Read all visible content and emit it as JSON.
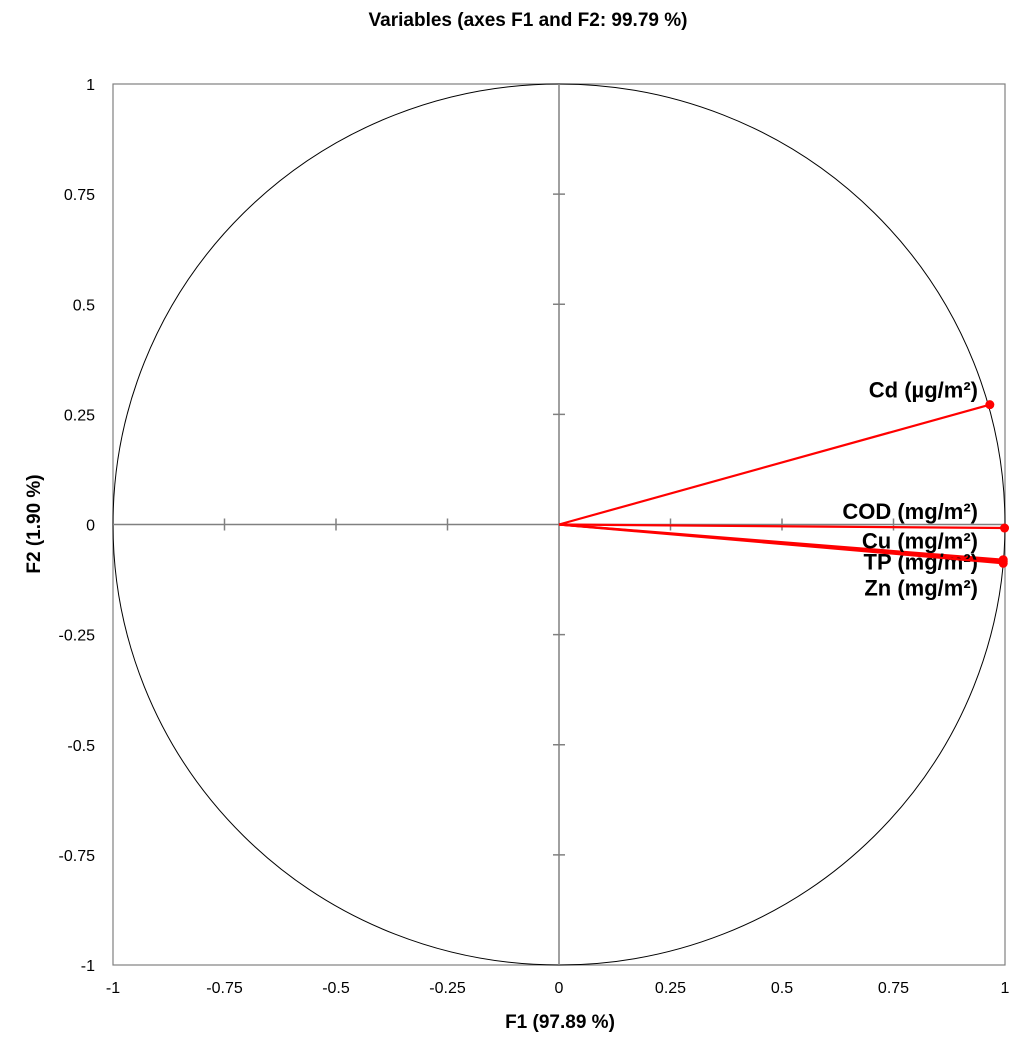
{
  "chart_data": {
    "type": "scatter",
    "subtype": "correlation-circle",
    "title": "Variables (axes F1 and F2: 99.79 %)",
    "xlabel": "F1 (97.89 %)",
    "ylabel": "F2 (1.90 %)",
    "xlim": [
      -1,
      1
    ],
    "ylim": [
      -1,
      1
    ],
    "x_ticks": [
      "-1",
      "-0.75",
      "-0.5",
      "-0.25",
      "0",
      "0.25",
      "0.5",
      "0.75",
      "1"
    ],
    "y_ticks": [
      "-1",
      "-0.75",
      "-0.5",
      "-0.25",
      "0",
      "0.25",
      "0.5",
      "0.75",
      "1"
    ],
    "grid": false,
    "unit_circle": true,
    "vector_color": "#ff0000",
    "series": [
      {
        "name": "Cd (µg/m²)",
        "x": 0.966,
        "y": 0.272
      },
      {
        "name": "COD (mg/m²)",
        "x": 0.999,
        "y": -0.008
      },
      {
        "name": "Cu (mg/m²)",
        "x": 0.996,
        "y": -0.08
      },
      {
        "name": "TP (mg/m²)",
        "x": 0.996,
        "y": -0.084
      },
      {
        "name": "Zn (mg/m²)",
        "x": 0.996,
        "y": -0.088
      }
    ]
  }
}
